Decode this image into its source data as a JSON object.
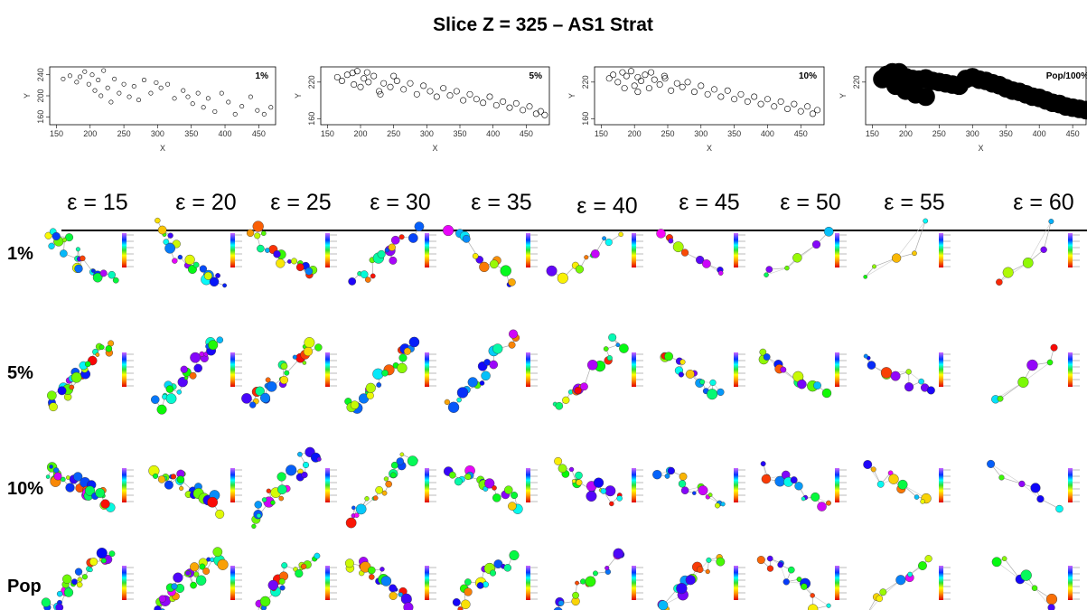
{
  "title": "Slice Z = 325 – AS1 Strat",
  "epsilon_labels": [
    "ε = 15",
    "ε = 20",
    "ε = 25",
    "ε = 30",
    "ε = 35",
    "ε = 40",
    "ε = 45",
    "ε = 50",
    "ε = 55",
    "ε = 60"
  ],
  "row_labels": [
    "1%",
    "5%",
    "10%",
    "Pop"
  ],
  "chart_data": [
    {
      "type": "scatter",
      "label": "1%",
      "x_label": "X",
      "y_label": "Y",
      "marker": "open",
      "xlim": [
        140,
        475
      ],
      "ylim": [
        145,
        255
      ],
      "xticks": [
        150,
        200,
        250,
        300,
        350,
        400,
        450
      ],
      "yticks": [
        160,
        200,
        240
      ],
      "x": [
        160,
        170,
        180,
        185,
        192,
        198,
        203,
        207,
        212,
        216,
        220,
        226,
        231,
        236,
        243,
        250,
        258,
        265,
        272,
        280,
        290,
        298,
        305,
        315,
        325,
        338,
        345,
        352,
        360,
        368,
        375,
        385,
        395,
        405,
        415,
        425,
        438,
        448,
        458,
        468
      ],
      "y": [
        232,
        238,
        226,
        236,
        246,
        222,
        240,
        210,
        230,
        200,
        248,
        215,
        188,
        232,
        205,
        222,
        198,
        218,
        192,
        230,
        205,
        225,
        215,
        222,
        195,
        210,
        198,
        185,
        205,
        178,
        195,
        170,
        205,
        188,
        165,
        180,
        198,
        172,
        165,
        178
      ]
    },
    {
      "type": "scatter",
      "label": "5%",
      "x_label": "X",
      "y_label": "Y",
      "marker": "open",
      "xlim": [
        140,
        485
      ],
      "ylim": [
        150,
        245
      ],
      "xticks": [
        150,
        200,
        250,
        300,
        350,
        400,
        450
      ],
      "yticks": [
        160,
        220
      ],
      "x": [
        165,
        172,
        180,
        188,
        195,
        200,
        205,
        212,
        220,
        228,
        235,
        245,
        255,
        265,
        275,
        285,
        295,
        305,
        315,
        325,
        335,
        345,
        355,
        365,
        375,
        385,
        395,
        405,
        415,
        425,
        435,
        445,
        455,
        465,
        472,
        478,
        190,
        210,
        230,
        250
      ],
      "y": [
        228,
        222,
        232,
        235,
        238,
        212,
        226,
        220,
        230,
        205,
        218,
        212,
        222,
        208,
        218,
        200,
        214,
        205,
        196,
        210,
        198,
        205,
        190,
        200,
        192,
        186,
        196,
        182,
        188,
        178,
        185,
        174,
        180,
        168,
        172,
        166,
        216,
        236,
        200,
        230
      ]
    },
    {
      "type": "scatter",
      "label": "10%",
      "x_label": "X",
      "y_label": "Y",
      "marker": "open",
      "xlim": [
        140,
        485
      ],
      "ylim": [
        150,
        245
      ],
      "xticks": [
        150,
        200,
        250,
        300,
        350,
        400,
        450
      ],
      "yticks": [
        160,
        220
      ],
      "x": [
        162,
        168,
        175,
        182,
        188,
        195,
        200,
        205,
        210,
        216,
        222,
        230,
        238,
        246,
        255,
        264,
        272,
        280,
        290,
        300,
        310,
        320,
        330,
        340,
        350,
        360,
        370,
        380,
        390,
        400,
        410,
        420,
        430,
        440,
        450,
        460,
        468,
        475,
        185,
        205,
        225,
        245
      ],
      "y": [
        226,
        232,
        220,
        236,
        230,
        238,
        214,
        228,
        222,
        232,
        210,
        224,
        216,
        226,
        206,
        218,
        212,
        220,
        204,
        214,
        200,
        208,
        196,
        206,
        192,
        200,
        188,
        196,
        184,
        192,
        180,
        188,
        176,
        184,
        172,
        180,
        168,
        174,
        210,
        204,
        236,
        230
      ]
    },
    {
      "type": "scatter",
      "label": "Pop/100%",
      "x_label": "X",
      "y_label": "Y",
      "marker": "filled",
      "xlim": [
        140,
        485
      ],
      "ylim": [
        150,
        245
      ],
      "xticks": [
        150,
        200,
        250,
        300,
        350,
        400,
        450
      ],
      "yticks": [
        220
      ],
      "x": [
        165,
        172,
        180,
        190,
        200,
        210,
        220,
        230,
        240,
        250,
        260,
        270,
        280,
        290,
        300,
        310,
        320,
        330,
        340,
        350,
        360,
        370,
        380,
        390,
        400,
        410,
        420,
        430,
        440,
        450,
        460,
        470,
        478,
        185,
        200,
        215,
        230
      ],
      "y": [
        225,
        232,
        236,
        236,
        228,
        225,
        224,
        226,
        222,
        220,
        218,
        216,
        214,
        225,
        228,
        224,
        222,
        218,
        215,
        210,
        206,
        204,
        200,
        196,
        194,
        190,
        186,
        184,
        180,
        178,
        176,
        174,
        172,
        214,
        206,
        200,
        196
      ]
    }
  ]
}
